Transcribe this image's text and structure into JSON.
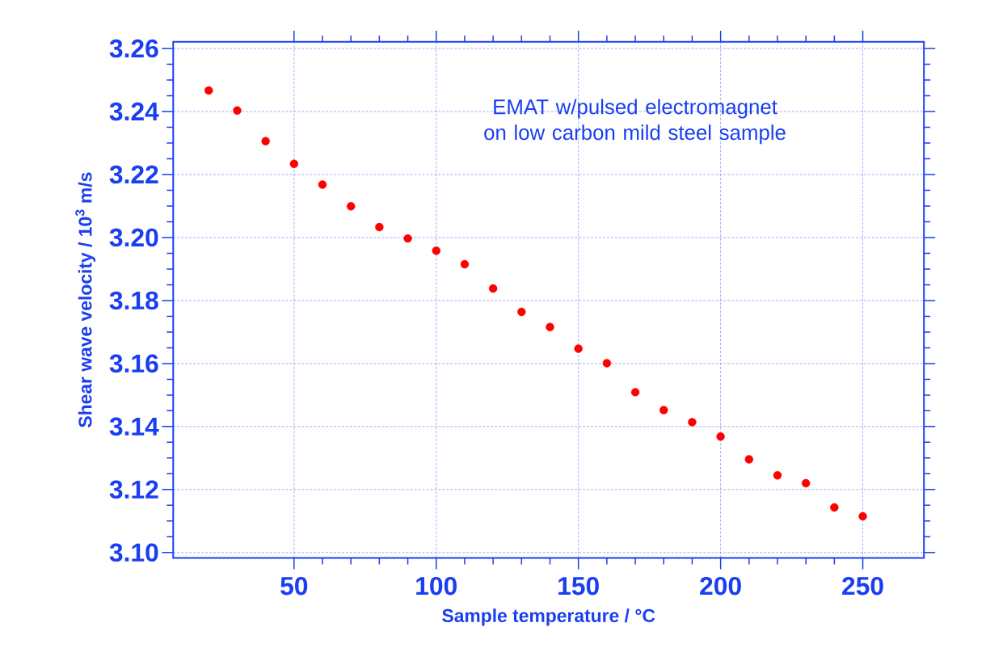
{
  "chart_data": {
    "type": "scatter",
    "xlabel": "Sample temperature / °C",
    "ylabel": "Shear wave velocity / 10$^{3}$ m/s",
    "annotations": [
      "EMAT w/pulsed electromagnet on low carbon mild steel sample"
    ],
    "x": [
      20,
      30,
      40,
      50,
      60,
      70,
      80,
      90,
      100,
      110,
      120,
      130,
      140,
      150,
      160,
      170,
      180,
      190,
      200,
      210,
      220,
      230,
      240,
      250
    ],
    "series": [
      {
        "color": "#ff0000",
        "values": [
          3.2467,
          3.2403,
          3.2306,
          3.2234,
          3.2168,
          3.2099,
          3.2033,
          3.1997,
          3.1958,
          3.1915,
          3.1838,
          3.1764,
          3.1716,
          3.1647,
          3.1601,
          3.1509,
          3.1452,
          3.1414,
          3.1368,
          3.1296,
          3.1245,
          3.122,
          3.1143,
          3.1115
        ]
      }
    ],
    "xlim": [
      7.5,
      271.5
    ],
    "ylim": [
      3.0983,
      3.2621
    ],
    "xticks": [
      50,
      100,
      150,
      200,
      250
    ],
    "yticks": [
      {
        "value": 3.1,
        "label": "3.10"
      },
      3.12,
      3.14,
      3.16,
      3.18,
      {
        "value": 3.2,
        "label": "3.20"
      },
      3.22,
      3.24,
      3.26
    ],
    "grid": true,
    "marker": "circle"
  }
}
